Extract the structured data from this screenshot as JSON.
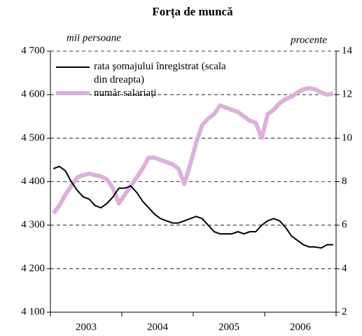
{
  "chart_data": {
    "type": "line",
    "title": "Forța de muncă",
    "ylabel": "mii persoane",
    "y2label": "procente",
    "categories": [
      null,
      null,
      null,
      null,
      null,
      null,
      "2003",
      null,
      null,
      null,
      null,
      null,
      null,
      null,
      null,
      null,
      null,
      null,
      "2004",
      null,
      null,
      null,
      null,
      null,
      null,
      null,
      null,
      null,
      null,
      null,
      "2005",
      null,
      null,
      null,
      null,
      null,
      null,
      null,
      null,
      null,
      null,
      null,
      "2006",
      null,
      null,
      null,
      null,
      null
    ],
    "series": [
      {
        "name": "rata şomajului înregistrat (scala din dreapta)",
        "color": "#000000",
        "axis": "y2",
        "values": [
          8.6,
          8.7,
          8.5,
          8.0,
          7.6,
          7.3,
          7.2,
          6.9,
          6.8,
          7.0,
          7.3,
          7.7,
          7.7,
          7.8,
          7.5,
          7.1,
          6.8,
          6.5,
          6.3,
          6.2,
          6.1,
          6.1,
          6.2,
          6.3,
          6.4,
          6.3,
          6.0,
          5.7,
          5.6,
          5.6,
          5.6,
          5.7,
          5.6,
          5.7,
          5.7,
          6.0,
          6.2,
          6.3,
          6.2,
          5.9,
          5.5,
          5.3,
          5.1,
          5.0,
          5.0,
          4.95,
          5.1,
          5.1
        ]
      },
      {
        "name": "număr salariați",
        "color": "#ddb0dc",
        "values": [
          4327,
          4345,
          4370,
          4390,
          4410,
          4415,
          4418,
          4415,
          4412,
          4405,
          4385,
          4350,
          4370,
          4390,
          4410,
          4430,
          4455,
          4455,
          4450,
          4445,
          4440,
          4430,
          4395,
          4440,
          4490,
          4530,
          4545,
          4555,
          4575,
          4570,
          4565,
          4560,
          4550,
          4540,
          4535,
          4500,
          4555,
          4565,
          4580,
          4590,
          4595,
          4605,
          4612,
          4615,
          4612,
          4605,
          4600,
          4602
        ]
      }
    ],
    "ylim": [
      4100,
      4700
    ],
    "yticks": [
      {
        "value": 4100,
        "label": "4 100"
      },
      {
        "value": 4200,
        "label": "4 200"
      },
      {
        "value": 4300,
        "label": "4 300"
      },
      {
        "value": 4400,
        "label": "4 400"
      },
      {
        "value": 4500,
        "label": "4 500"
      },
      {
        "value": 4600,
        "label": "4 600"
      },
      {
        "value": 4700,
        "label": "4 700"
      }
    ],
    "y2lim": [
      2,
      14
    ],
    "y2ticks": [
      2,
      4,
      6,
      8,
      10,
      12,
      14
    ],
    "grid": true
  }
}
